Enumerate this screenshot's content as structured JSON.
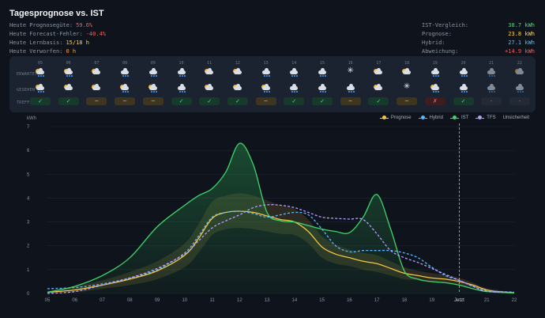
{
  "title": "Tagesprognose vs. IST",
  "stats_left": [
    {
      "label": "Heute Prognosegüte:",
      "value": "59.6%",
      "color": "#ff5a5a"
    },
    {
      "label": "Heute Forecast-Fehler:",
      "value": "-40.4%",
      "color": "#ff5a5a"
    },
    {
      "label": "Heute Lernbasis:",
      "value": "15/18 h",
      "color": "#ffd24a"
    },
    {
      "label": "Heute Verworfen:",
      "value": "0 h",
      "color": "#ff9a3c"
    }
  ],
  "stats_right": [
    {
      "label": "IST-Vergleich:",
      "value": "38.7 kWh",
      "color": "#4ddc7a"
    },
    {
      "label": "Prognose:",
      "value": "23.8 kWh",
      "color": "#ffd24a"
    },
    {
      "label": "Hybrid:",
      "value": "27.1 kWh",
      "color": "#5ab8ff"
    },
    {
      "label": "Abweichung:",
      "value": "+14.9 kWh",
      "color": "#ff5a5a"
    }
  ],
  "weather_panel": {
    "row_labels": [
      "ERWARTET",
      "GESEHEN",
      "TREFFER"
    ],
    "hours": [
      {
        "hour": "05",
        "expected": "partly-cloudy-rain-icon",
        "seen": "partly-cloudy-rain-icon",
        "match": "✓",
        "status": "ok"
      },
      {
        "hour": "06",
        "expected": "partly-cloudy-rain-icon",
        "seen": "partly-cloudy-icon",
        "match": "✓",
        "status": "ok"
      },
      {
        "hour": "07",
        "expected": "partly-cloudy-icon",
        "seen": "partly-cloudy-icon",
        "match": "~",
        "status": "mid"
      },
      {
        "hour": "08",
        "expected": "cloud-rain-icon",
        "seen": "partly-cloudy-rain-icon",
        "match": "~",
        "status": "mid"
      },
      {
        "hour": "09",
        "expected": "cloud-rain-icon",
        "seen": "partly-cloudy-rain-icon",
        "match": "~",
        "status": "mid"
      },
      {
        "hour": "10",
        "expected": "cloud-rain-icon",
        "seen": "cloud-rain-icon",
        "match": "✓",
        "status": "ok"
      },
      {
        "hour": "11",
        "expected": "partly-cloudy-icon",
        "seen": "partly-cloudy-icon",
        "match": "✓",
        "status": "ok"
      },
      {
        "hour": "12",
        "expected": "partly-cloudy-icon",
        "seen": "partly-cloudy-icon",
        "match": "✓",
        "status": "ok"
      },
      {
        "hour": "13",
        "expected": "cloud-rain-icon",
        "seen": "partly-cloudy-rain-icon",
        "match": "~",
        "status": "mid"
      },
      {
        "hour": "14",
        "expected": "cloud-rain-icon",
        "seen": "cloud-rain-icon",
        "match": "✓",
        "status": "ok"
      },
      {
        "hour": "15",
        "expected": "cloud-rain-icon",
        "seen": "cloud-rain-icon",
        "match": "✓",
        "status": "ok"
      },
      {
        "hour": "16",
        "expected": "snowflake-icon",
        "seen": "cloud-rain-icon",
        "match": "~",
        "status": "mid"
      },
      {
        "hour": "17",
        "expected": "partly-cloudy-icon",
        "seen": "partly-cloudy-icon",
        "match": "✓",
        "status": "ok"
      },
      {
        "hour": "18",
        "expected": "partly-cloudy-icon",
        "seen": "snowflake-icon",
        "match": "~",
        "status": "mid"
      },
      {
        "hour": "19",
        "expected": "cloud-rain-icon",
        "seen": "partly-cloudy-rain-icon",
        "match": "✗",
        "status": "bad"
      },
      {
        "hour": "20",
        "expected": "cloud-rain-icon",
        "seen": "cloud-rain-icon",
        "match": "✓",
        "status": "ok"
      },
      {
        "hour": "21",
        "expected": "cloud-rain-icon",
        "seen": "cloud-rain-icon",
        "match": "-",
        "status": "none"
      },
      {
        "hour": "22",
        "expected": "partly-cloudy-icon",
        "seen": "cloud-rain-icon",
        "match": "-",
        "status": "none"
      }
    ]
  },
  "chart_data": {
    "type": "line",
    "ylabel": "kWh",
    "ylim": [
      0,
      7
    ],
    "y_ticks": [
      "0",
      "1",
      "2",
      "3",
      "4",
      "5",
      "6",
      "7"
    ],
    "x_ticks": [
      "05",
      "06",
      "07",
      "08",
      "09",
      "10",
      "11",
      "12",
      "13",
      "14",
      "15",
      "16",
      "17",
      "18",
      "19",
      "Jetzt",
      "21",
      "22"
    ],
    "xlim": [
      5,
      22
    ],
    "now_marker": {
      "x": 20.0,
      "label": "Jetzt"
    },
    "legend_position": "top-right",
    "series": [
      {
        "name": "Prognose",
        "color": "#f5c542",
        "style": "solid",
        "points": [
          [
            5,
            0.05
          ],
          [
            6,
            0.15
          ],
          [
            7,
            0.35
          ],
          [
            8,
            0.6
          ],
          [
            9,
            0.95
          ],
          [
            10,
            1.6
          ],
          [
            10.5,
            2.3
          ],
          [
            11,
            3.15
          ],
          [
            11.5,
            3.4
          ],
          [
            12,
            3.45
          ],
          [
            12.5,
            3.4
          ],
          [
            13,
            3.25
          ],
          [
            13.5,
            3.1
          ],
          [
            14,
            3.0
          ],
          [
            14.5,
            2.6
          ],
          [
            15,
            1.95
          ],
          [
            15.5,
            1.65
          ],
          [
            16,
            1.5
          ],
          [
            16.5,
            1.35
          ],
          [
            17,
            1.25
          ],
          [
            17.5,
            1.05
          ],
          [
            18,
            0.85
          ],
          [
            18.5,
            0.75
          ],
          [
            19,
            0.65
          ],
          [
            19.5,
            0.6
          ],
          [
            20,
            0.5
          ],
          [
            20.5,
            0.35
          ],
          [
            21,
            0.15
          ],
          [
            21.5,
            0.07
          ],
          [
            22,
            0.03
          ]
        ]
      },
      {
        "name": "Hybrid",
        "color": "#5ab8ff",
        "style": "dashed",
        "points": [
          [
            5,
            0.2
          ],
          [
            6,
            0.25
          ],
          [
            7,
            0.4
          ],
          [
            8,
            0.65
          ],
          [
            9,
            1.0
          ],
          [
            10,
            1.7
          ],
          [
            10.5,
            2.4
          ],
          [
            11,
            3.2
          ],
          [
            11.5,
            3.4
          ],
          [
            12,
            3.45
          ],
          [
            12.5,
            3.35
          ],
          [
            13,
            3.2
          ],
          [
            13.5,
            3.3
          ],
          [
            14,
            3.4
          ],
          [
            14.5,
            3.3
          ],
          [
            15,
            2.7
          ],
          [
            15.5,
            2.0
          ],
          [
            16,
            1.75
          ],
          [
            16.5,
            1.8
          ],
          [
            17,
            1.8
          ],
          [
            17.5,
            1.8
          ],
          [
            18,
            1.7
          ],
          [
            18.5,
            1.5
          ],
          [
            19,
            1.1
          ],
          [
            19.5,
            0.75
          ],
          [
            20,
            0.55
          ],
          [
            20.5,
            0.3
          ],
          [
            21,
            0.12
          ],
          [
            22,
            0.05
          ]
        ]
      },
      {
        "name": "IST",
        "color": "#3fd46a",
        "style": "solid",
        "fill": true,
        "points": [
          [
            5,
            0.05
          ],
          [
            6,
            0.3
          ],
          [
            7,
            0.75
          ],
          [
            8,
            1.5
          ],
          [
            9,
            2.8
          ],
          [
            10,
            3.7
          ],
          [
            10.5,
            4.1
          ],
          [
            11,
            4.4
          ],
          [
            11.5,
            5.1
          ],
          [
            12,
            6.3
          ],
          [
            12.5,
            5.4
          ],
          [
            13,
            3.4
          ],
          [
            13.5,
            3.05
          ],
          [
            14,
            3.0
          ],
          [
            14.5,
            2.85
          ],
          [
            15,
            2.7
          ],
          [
            15.5,
            2.6
          ],
          [
            16,
            2.55
          ],
          [
            16.5,
            3.2
          ],
          [
            17,
            4.15
          ],
          [
            17.5,
            2.7
          ],
          [
            18,
            0.95
          ],
          [
            18.5,
            0.6
          ],
          [
            19,
            0.5
          ],
          [
            19.5,
            0.45
          ],
          [
            20,
            0.35
          ],
          [
            20.5,
            0.2
          ],
          [
            21,
            0.08
          ],
          [
            22,
            0.02
          ]
        ]
      },
      {
        "name": "TFS",
        "color": "#b89cff",
        "style": "dashed",
        "points": [
          [
            5,
            0.0
          ],
          [
            6,
            0.08
          ],
          [
            7,
            0.35
          ],
          [
            8,
            0.65
          ],
          [
            9,
            1.05
          ],
          [
            10,
            1.65
          ],
          [
            10.5,
            2.2
          ],
          [
            11,
            2.75
          ],
          [
            11.5,
            3.05
          ],
          [
            12,
            3.3
          ],
          [
            12.5,
            3.6
          ],
          [
            13,
            3.72
          ],
          [
            13.5,
            3.7
          ],
          [
            14,
            3.6
          ],
          [
            14.5,
            3.4
          ],
          [
            15,
            3.2
          ],
          [
            15.5,
            3.15
          ],
          [
            16,
            3.12
          ],
          [
            16.5,
            3.1
          ],
          [
            17,
            2.5
          ],
          [
            17.5,
            1.8
          ],
          [
            18,
            1.5
          ],
          [
            18.5,
            1.3
          ],
          [
            19,
            1.05
          ],
          [
            19.5,
            0.8
          ],
          [
            20,
            0.55
          ],
          [
            20.5,
            0.3
          ],
          [
            21,
            0.1
          ],
          [
            22,
            0.05
          ]
        ]
      }
    ],
    "uncertainty": {
      "name": "Unsicherheit",
      "color": "#c8a040",
      "upper": [
        [
          5,
          0.1
        ],
        [
          6,
          0.3
        ],
        [
          7,
          0.55
        ],
        [
          8,
          0.9
        ],
        [
          9,
          1.35
        ],
        [
          10,
          2.1
        ],
        [
          10.5,
          2.9
        ],
        [
          11,
          3.85
        ],
        [
          11.5,
          4.1
        ],
        [
          12,
          4.2
        ],
        [
          12.5,
          4.1
        ],
        [
          13,
          3.9
        ],
        [
          13.5,
          3.7
        ],
        [
          14,
          3.55
        ],
        [
          14.5,
          3.1
        ],
        [
          15,
          2.4
        ],
        [
          15.5,
          2.05
        ],
        [
          16,
          1.85
        ],
        [
          16.5,
          1.7
        ],
        [
          17,
          1.6
        ],
        [
          17.5,
          1.35
        ],
        [
          18,
          1.1
        ],
        [
          18.5,
          0.95
        ],
        [
          19,
          0.85
        ],
        [
          19.5,
          0.78
        ],
        [
          20,
          0.65
        ],
        [
          20.5,
          0.45
        ],
        [
          21,
          0.22
        ],
        [
          22,
          0.05
        ]
      ],
      "lower": [
        [
          5,
          0.0
        ],
        [
          6,
          0.05
        ],
        [
          7,
          0.2
        ],
        [
          8,
          0.35
        ],
        [
          9,
          0.6
        ],
        [
          10,
          1.1
        ],
        [
          10.5,
          1.7
        ],
        [
          11,
          2.45
        ],
        [
          11.5,
          2.7
        ],
        [
          12,
          2.75
        ],
        [
          12.5,
          2.7
        ],
        [
          13,
          2.6
        ],
        [
          13.5,
          2.5
        ],
        [
          14,
          2.45
        ],
        [
          14.5,
          2.1
        ],
        [
          15,
          1.5
        ],
        [
          15.5,
          1.25
        ],
        [
          16,
          1.15
        ],
        [
          16.5,
          1.0
        ],
        [
          17,
          0.9
        ],
        [
          17.5,
          0.75
        ],
        [
          18,
          0.6
        ],
        [
          18.5,
          0.55
        ],
        [
          19,
          0.45
        ],
        [
          19.5,
          0.42
        ],
        [
          20,
          0.35
        ],
        [
          20.5,
          0.25
        ],
        [
          21,
          0.08
        ],
        [
          22,
          0.01
        ]
      ]
    }
  }
}
